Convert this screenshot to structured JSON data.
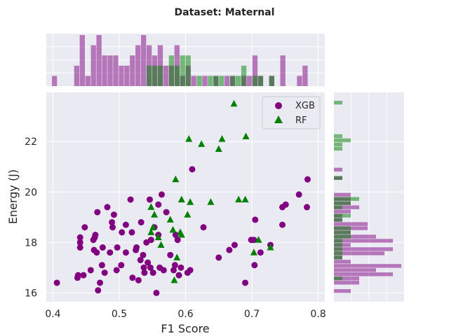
{
  "chart_data": {
    "type": "scatter",
    "title": "Dataset: Maternal",
    "xlabel": "F1 Score",
    "ylabel": "Energy (J)",
    "xlim": [
      0.39,
      0.81
    ],
    "ylim": [
      15.65,
      23.95
    ],
    "xticks": [
      0.4,
      0.5,
      0.6,
      0.7,
      0.8
    ],
    "yticks": [
      16,
      18,
      20,
      22
    ],
    "xtick_labels": [
      "0.4",
      "0.5",
      "0.6",
      "0.7",
      "0.8"
    ],
    "ytick_labels": [
      "16",
      "18",
      "20",
      "22"
    ],
    "grid": true,
    "legend_position": "top-right",
    "marginal_histograms": true,
    "series": [
      {
        "name": "XGB",
        "marker": "circle",
        "color": "#800080",
        "points": [
          [
            0.406,
            16.4
          ],
          [
            0.437,
            16.6
          ],
          [
            0.438,
            16.7
          ],
          [
            0.441,
            17.8
          ],
          [
            0.441,
            18.0
          ],
          [
            0.441,
            18.2
          ],
          [
            0.446,
            16.7
          ],
          [
            0.448,
            18.6
          ],
          [
            0.457,
            16.9
          ],
          [
            0.461,
            18.1
          ],
          [
            0.462,
            17.7
          ],
          [
            0.463,
            18.2
          ],
          [
            0.464,
            18.3
          ],
          [
            0.466,
            17.6
          ],
          [
            0.467,
            19.2
          ],
          [
            0.468,
            16.1
          ],
          [
            0.471,
            16.4
          ],
          [
            0.474,
            17.1
          ],
          [
            0.475,
            17.8
          ],
          [
            0.478,
            16.8
          ],
          [
            0.482,
            19.4
          ],
          [
            0.486,
            17.6
          ],
          [
            0.489,
            18.8
          ],
          [
            0.49,
            18.6
          ],
          [
            0.492,
            19.1
          ],
          [
            0.496,
            16.9
          ],
          [
            0.497,
            17.8
          ],
          [
            0.503,
            17.1
          ],
          [
            0.504,
            18.4
          ],
          [
            0.51,
            18.7
          ],
          [
            0.51,
            17.6
          ],
          [
            0.517,
            19.7
          ],
          [
            0.519,
            18.4
          ],
          [
            0.52,
            16.6
          ],
          [
            0.525,
            17.7
          ],
          [
            0.526,
            17.8
          ],
          [
            0.529,
            16.5
          ],
          [
            0.532,
            17.3
          ],
          [
            0.533,
            18.8
          ],
          [
            0.536,
            17.5
          ],
          [
            0.537,
            17.0
          ],
          [
            0.538,
            16.8
          ],
          [
            0.541,
            18.0
          ],
          [
            0.543,
            17.2
          ],
          [
            0.546,
            19.7
          ],
          [
            0.547,
            17.0
          ],
          [
            0.548,
            18.1
          ],
          [
            0.551,
            16.8
          ],
          [
            0.553,
            18.6
          ],
          [
            0.556,
            16.0
          ],
          [
            0.559,
            18.3
          ],
          [
            0.559,
            19.5
          ],
          [
            0.561,
            17.0
          ],
          [
            0.564,
            19.9
          ],
          [
            0.567,
            16.9
          ],
          [
            0.571,
            19.2
          ],
          [
            0.577,
            17.5
          ],
          [
            0.582,
            16.9
          ],
          [
            0.584,
            17.1
          ],
          [
            0.585,
            18.3
          ],
          [
            0.588,
            18.1
          ],
          [
            0.59,
            16.7
          ],
          [
            0.593,
            17.0
          ],
          [
            0.603,
            16.8
          ],
          [
            0.607,
            16.9
          ],
          [
            0.61,
            20.9
          ],
          [
            0.627,
            18.6
          ],
          [
            0.65,
            17.4
          ],
          [
            0.666,
            17.7
          ],
          [
            0.674,
            17.9
          ],
          [
            0.69,
            16.4
          ],
          [
            0.699,
            18.1
          ],
          [
            0.703,
            18.1
          ],
          [
            0.704,
            17.1
          ],
          [
            0.705,
            18.9
          ],
          [
            0.713,
            17.6
          ],
          [
            0.728,
            17.9
          ],
          [
            0.746,
            19.4
          ],
          [
            0.746,
            18.7
          ],
          [
            0.751,
            19.5
          ],
          [
            0.771,
            19.9
          ],
          [
            0.783,
            19.4
          ],
          [
            0.784,
            20.5
          ]
        ]
      },
      {
        "name": "RF",
        "marker": "triangle",
        "color": "#008000",
        "points": [
          [
            0.548,
            19.4
          ],
          [
            0.548,
            18.4
          ],
          [
            0.551,
            18.6
          ],
          [
            0.553,
            19.1
          ],
          [
            0.559,
            18.2
          ],
          [
            0.563,
            17.9
          ],
          [
            0.577,
            18.9
          ],
          [
            0.581,
            18.5
          ],
          [
            0.583,
            16.5
          ],
          [
            0.585,
            20.5
          ],
          [
            0.587,
            17.4
          ],
          [
            0.592,
            18.4
          ],
          [
            0.594,
            18.3
          ],
          [
            0.594,
            19.7
          ],
          [
            0.603,
            19.1
          ],
          [
            0.605,
            22.1
          ],
          [
            0.607,
            19.6
          ],
          [
            0.624,
            21.9
          ],
          [
            0.638,
            19.6
          ],
          [
            0.65,
            21.7
          ],
          [
            0.655,
            22.1
          ],
          [
            0.673,
            23.5
          ],
          [
            0.68,
            19.7
          ],
          [
            0.69,
            19.7
          ],
          [
            0.691,
            22.2
          ],
          [
            0.703,
            17.6
          ],
          [
            0.71,
            18.1
          ],
          [
            0.728,
            17.8
          ]
        ]
      }
    ]
  }
}
